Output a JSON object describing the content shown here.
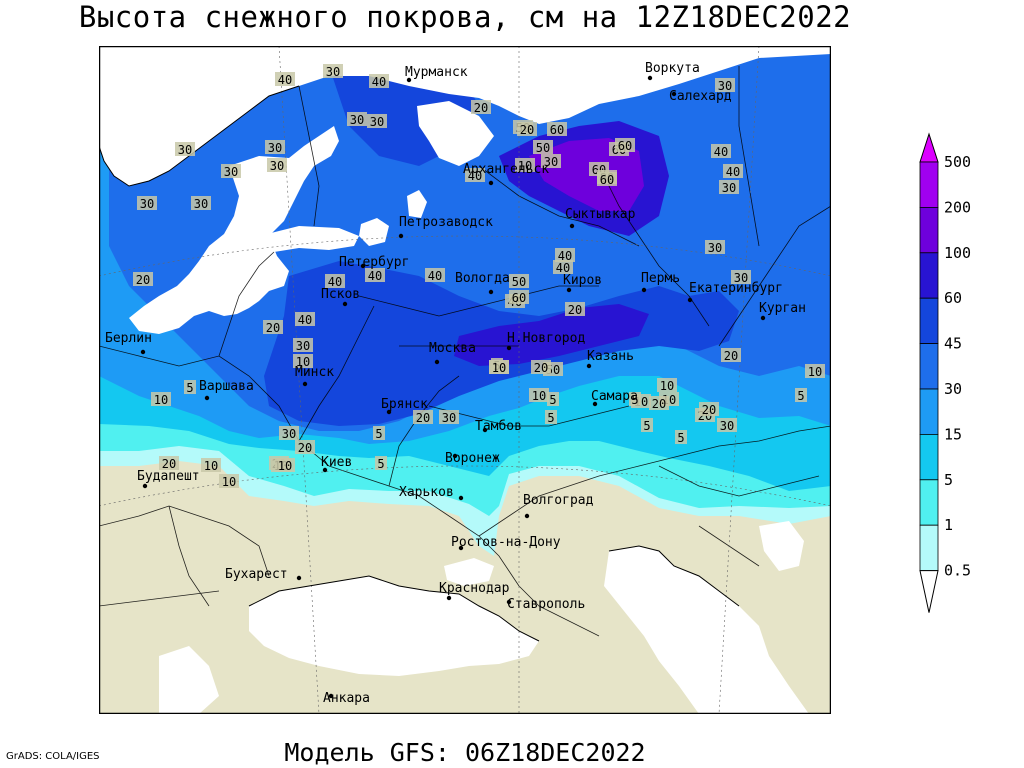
{
  "title": "Высота снежного покрова, см на 12Z18DEC2022",
  "subtitle": "Модель GFS: 06Z18DEC2022",
  "credit": "GrADS: COLA/IGES",
  "colors": {
    "land_no_snow": "#e6e4c8",
    "sea": "#ffffff",
    "c0_5": "#b4fafa",
    "c1": "#50f0f0",
    "c5": "#14c8f0",
    "c15": "#1e9bf5",
    "c30": "#1e6eeb",
    "c45": "#1446dc",
    "c60": "#2814d2",
    "c100": "#6e00dc",
    "c200": "#a000f0",
    "c500": "#dc00ff"
  },
  "chart_data": {
    "type": "heatmap",
    "title": "Высота снежного покрова, см на 12Z18DEC2022",
    "subtitle": "Модель GFS: 06Z18DEC2022",
    "units": "см",
    "colorbar": {
      "levels": [
        0.5,
        1,
        5,
        15,
        30,
        45,
        60,
        100,
        200,
        500
      ],
      "labels": [
        "0.5",
        "1",
        "5",
        "15",
        "30",
        "45",
        "60",
        "100",
        "200",
        "500"
      ],
      "colors": [
        "#b4fafa",
        "#50f0f0",
        "#14c8f0",
        "#1e9bf5",
        "#1e6eeb",
        "#1446dc",
        "#2814d2",
        "#6e00dc",
        "#a000f0",
        "#dc00ff"
      ]
    },
    "cities": [
      {
        "name": "Мурманск"
      },
      {
        "name": "Воркута"
      },
      {
        "name": "Салехард"
      },
      {
        "name": "Архангельск"
      },
      {
        "name": "Сыктывкар"
      },
      {
        "name": "Петрозаводск"
      },
      {
        "name": "Петербург"
      },
      {
        "name": "Вологда"
      },
      {
        "name": "Киров"
      },
      {
        "name": "Пермь"
      },
      {
        "name": "Екатеринбург"
      },
      {
        "name": "Курган"
      },
      {
        "name": "Псков"
      },
      {
        "name": "Н.Новгород"
      },
      {
        "name": "Москва"
      },
      {
        "name": "Казань"
      },
      {
        "name": "Берлин"
      },
      {
        "name": "Варшава"
      },
      {
        "name": "Минск"
      },
      {
        "name": "Брянск"
      },
      {
        "name": "Тамбов"
      },
      {
        "name": "Самара"
      },
      {
        "name": "Киев"
      },
      {
        "name": "Воронеж"
      },
      {
        "name": "Будапешт"
      },
      {
        "name": "Харьков"
      },
      {
        "name": "Волгоград"
      },
      {
        "name": "Ростов-на-Дону"
      },
      {
        "name": "Бухарест"
      },
      {
        "name": "Краснодар"
      },
      {
        "name": "Ставрополь"
      },
      {
        "name": "Анкара"
      }
    ],
    "contour_labels": [
      "30",
      "30",
      "30",
      "30",
      "40",
      "30",
      "40",
      "30",
      "30",
      "20",
      "30",
      "30",
      "40",
      "40",
      "50",
      "50",
      "60",
      "60",
      "60",
      "60",
      "80",
      "60",
      "40",
      "40",
      "30",
      "30",
      "30",
      "30",
      "40",
      "40",
      "50",
      "40",
      "60",
      "40",
      "40",
      "40",
      "30",
      "20",
      "30",
      "20",
      "20",
      "10",
      "5",
      "10",
      "10",
      "10",
      "30",
      "20",
      "50",
      "20",
      "10",
      "20",
      "20",
      "10",
      "10",
      "20",
      "10",
      "5",
      "30",
      "20",
      "5",
      "10",
      "20",
      "5",
      "5",
      "5",
      "10",
      "5",
      "10",
      "5",
      "10",
      "5",
      "20",
      "20",
      "30",
      "10",
      "10",
      "5",
      "20"
    ]
  }
}
